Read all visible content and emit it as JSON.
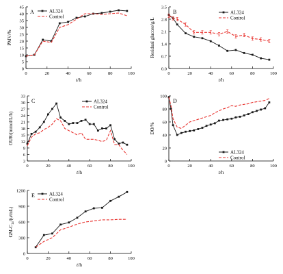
{
  "colors": {
    "al324": "#1a1a1a",
    "control": "#e8322e",
    "axis": "#000000"
  },
  "chart_data": [
    {
      "type": "line",
      "panel_label": "A",
      "ylabel": "PMV/%",
      "xlabel_var": "t",
      "xlabel_unit": "/h",
      "xlim": [
        0,
        100
      ],
      "ylim": [
        0,
        45
      ],
      "xticks": [
        0,
        20,
        40,
        60,
        80,
        100
      ],
      "yticks": [
        0,
        5,
        10,
        15,
        20,
        25,
        30,
        35,
        40,
        45
      ],
      "legend": "top-left",
      "series": [
        {
          "name": "AL324",
          "style": "solid-square",
          "x": [
            0,
            8,
            16,
            24,
            32,
            40,
            48,
            56,
            64,
            72,
            80,
            88,
            96
          ],
          "y": [
            9,
            10,
            21,
            20,
            33,
            34,
            37,
            38,
            40,
            40.5,
            41.5,
            42.5,
            42
          ]
        },
        {
          "name": "Control",
          "style": "dashed",
          "x": [
            0,
            8,
            16,
            24,
            32,
            40,
            48,
            56,
            64,
            72,
            80,
            88,
            96
          ],
          "y": [
            9,
            10,
            20,
            19,
            30,
            32,
            36,
            40,
            40,
            39.5,
            40,
            40.5,
            38.5
          ]
        }
      ]
    },
    {
      "type": "line",
      "panel_label": "B",
      "ylabel": "Residual glucose/g/L",
      "xlabel_var": "t",
      "xlabel_unit": "/h",
      "xlim": [
        0,
        100
      ],
      "ylim": [
        0,
        3.5
      ],
      "xticks": [
        0,
        20,
        40,
        60,
        80,
        100
      ],
      "yticks": [
        0.0,
        0.7,
        1.4,
        2.1,
        2.8,
        3.5
      ],
      "legend": "top-right",
      "series": [
        {
          "name": "AL324",
          "style": "solid-square",
          "x": [
            0,
            4,
            8,
            16,
            24,
            32,
            40,
            48,
            56,
            64,
            72,
            80,
            88,
            96
          ],
          "y": [
            3.05,
            2.85,
            2.5,
            2.0,
            1.8,
            1.72,
            1.55,
            1.3,
            1.0,
            1.05,
            0.88,
            0.78,
            0.58,
            0.5
          ]
        },
        {
          "name": "Control",
          "style": "dashed-errorbar",
          "x": [
            0,
            4,
            8,
            16,
            24,
            32,
            40,
            48,
            56,
            64,
            72,
            80,
            88,
            96
          ],
          "y": [
            3.0,
            2.85,
            2.8,
            2.5,
            2.05,
            2.05,
            2.05,
            1.95,
            2.1,
            1.82,
            1.9,
            1.7,
            1.65,
            1.55
          ]
        }
      ]
    },
    {
      "type": "line",
      "panel_label": "C",
      "ylabel": "OUR/(mmol/L/h)",
      "xlabel_var": "t",
      "xlabel_unit": "/h",
      "xlim": [
        0,
        100
      ],
      "ylim": [
        3,
        33
      ],
      "xticks": [
        0,
        20,
        40,
        60,
        80,
        100
      ],
      "yticks": [
        3,
        6,
        9,
        12,
        15,
        18,
        21,
        24,
        27,
        30,
        33
      ],
      "legend": "top-right",
      "series": [
        {
          "name": "AL324",
          "style": "solid-square",
          "x": [
            0,
            4,
            8,
            12,
            16,
            20,
            24,
            28,
            32,
            36,
            40,
            44,
            48,
            52,
            56,
            60,
            64,
            68,
            72,
            76,
            80,
            84,
            88,
            92,
            96
          ],
          "y": [
            11,
            15.5,
            16.5,
            18.5,
            21,
            24.5,
            27,
            29.5,
            23,
            21.5,
            20,
            20.5,
            20.5,
            21.5,
            22,
            20,
            20,
            17,
            18,
            18,
            19.5,
            13,
            11,
            11.5,
            10.5
          ]
        },
        {
          "name": "Control",
          "style": "dashed",
          "x": [
            0,
            4,
            8,
            12,
            16,
            20,
            24,
            28,
            32,
            36,
            40,
            44,
            48,
            52,
            56,
            60,
            64,
            68,
            72,
            76,
            80,
            84,
            88,
            92,
            96
          ],
          "y": [
            10,
            14,
            15.5,
            16,
            17.5,
            18.5,
            20,
            22.5,
            21.5,
            18,
            17,
            16,
            15,
            16,
            13,
            13,
            13,
            12.5,
            12,
            12.5,
            17,
            10.5,
            10.5,
            8,
            6
          ]
        }
      ]
    },
    {
      "type": "line",
      "panel_label": "D",
      "ylabel": "DO/%",
      "xlabel_var": "t",
      "xlabel_unit": "/h",
      "xlim": [
        0,
        100
      ],
      "ylim": [
        0,
        100
      ],
      "xticks": [
        0,
        20,
        40,
        60,
        80,
        100
      ],
      "yticks": [
        0,
        20,
        40,
        60,
        80,
        100
      ],
      "legend": "bottom-right",
      "series": [
        {
          "name": "AL324",
          "style": "solid-square",
          "x": [
            0,
            2,
            4,
            8,
            12,
            16,
            20,
            24,
            28,
            32,
            36,
            40,
            44,
            48,
            52,
            56,
            60,
            64,
            68,
            72,
            76,
            80,
            84,
            88,
            92,
            96
          ],
          "y": [
            98,
            80,
            55,
            40,
            43,
            45,
            46,
            47,
            49,
            51,
            54,
            56,
            58,
            62,
            63,
            64,
            65,
            67,
            68,
            70,
            72,
            75,
            77,
            79,
            81,
            90
          ]
        },
        {
          "name": "Control",
          "style": "dashed",
          "x": [
            0,
            2,
            4,
            8,
            12,
            16,
            20,
            24,
            28,
            32,
            36,
            40,
            44,
            48,
            52,
            56,
            60,
            64,
            68,
            72,
            76,
            80,
            84,
            88,
            92,
            96
          ],
          "y": [
            98,
            85,
            65,
            52,
            50,
            55,
            60,
            62,
            64,
            66,
            68,
            70,
            74,
            77,
            80,
            82,
            85,
            84,
            86,
            87,
            88,
            90,
            91,
            92,
            93,
            96
          ]
        }
      ]
    },
    {
      "type": "line",
      "panel_label": "E",
      "ylabel_main": "GM-C",
      "ylabel_sub": "1a",
      "ylabel_unit": "/(u/mL)",
      "xlabel_var": "t",
      "xlabel_unit": "/h",
      "xlim": [
        0,
        100
      ],
      "ylim": [
        0,
        1200
      ],
      "xticks": [
        0,
        20,
        40,
        60,
        80,
        100
      ],
      "yticks": [
        0,
        300,
        600,
        900,
        1200
      ],
      "legend": "top-left",
      "series": [
        {
          "name": "AL324",
          "style": "solid-square",
          "x": [
            8,
            16,
            24,
            32,
            40,
            48,
            56,
            64,
            72,
            80,
            88,
            96
          ],
          "y": [
            120,
            350,
            380,
            550,
            590,
            680,
            800,
            860,
            870,
            1000,
            1080,
            1170
          ]
        },
        {
          "name": "Control",
          "style": "dashed",
          "x": [
            8,
            16,
            24,
            32,
            40,
            48,
            56,
            64,
            72,
            80,
            88,
            96
          ],
          "y": [
            120,
            230,
            300,
            450,
            500,
            560,
            600,
            620,
            640,
            640,
            650,
            650
          ]
        }
      ]
    }
  ]
}
